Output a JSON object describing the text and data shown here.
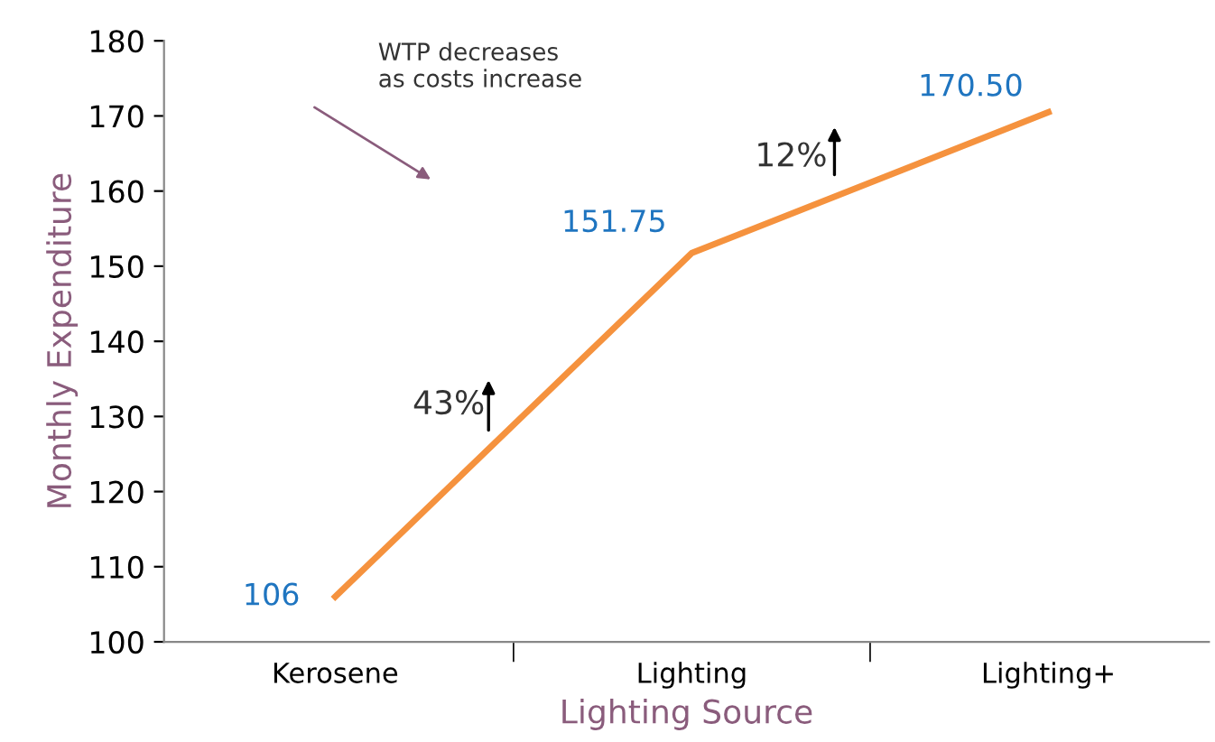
{
  "chart_data": {
    "type": "line",
    "xlabel": "Lighting Source",
    "ylabel": "Monthly Expenditure",
    "categories": [
      "Kerosene",
      "Lighting",
      "Lighting+"
    ],
    "series": [
      {
        "color": "#f5923e",
        "values": [
          106,
          151.75,
          170.5
        ],
        "value_labels": [
          "106",
          "151.75",
          "170.50"
        ]
      }
    ],
    "ylim": [
      100,
      180
    ],
    "yticks": [
      100,
      110,
      120,
      130,
      140,
      150,
      160,
      170,
      180
    ],
    "grid": false,
    "marker": "none",
    "line_style": "solid",
    "annotations": [
      "WTP decreases\nas costs increase",
      "43%",
      "12%"
    ]
  }
}
